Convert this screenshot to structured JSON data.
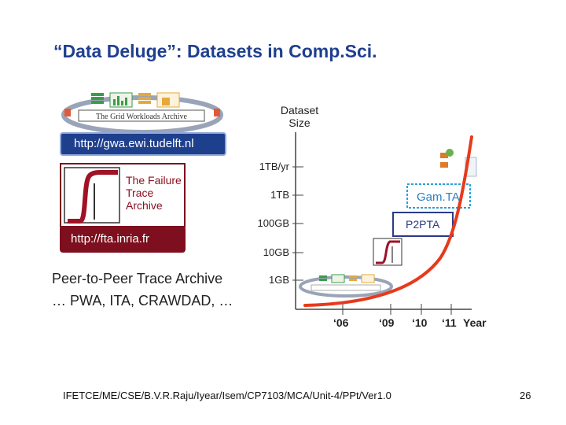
{
  "slide": {
    "title": "“Data Deluge”: Datasets in Comp.Sci.",
    "footer": "IFETCE/ME/CSE/B.V.R.Raju/Iyear/Isem/CP7103/MCA/Unit-4/PPt/Ver1.0",
    "page_number": "26"
  },
  "left": {
    "gwa_logo_text": "The Grid Workloads Archive",
    "gwa_url": "http://gwa.ewi.tudelft.nl",
    "fta_name_lines": [
      "The Failure",
      "Trace",
      "Archive"
    ],
    "fta_url": "http://fta.inria.fr",
    "p2p": "Peer-to-Peer Trace Archive",
    "others": "… PWA, ITA, CRAWDAD, …"
  },
  "chart_data": {
    "type": "line",
    "y_title_lines": [
      "Dataset",
      "Size"
    ],
    "y_ticks": [
      "1TB/yr",
      "1TB",
      "100GB",
      "10GB",
      "1GB"
    ],
    "x_ticks": [
      "‘06",
      "‘09",
      "‘10",
      "‘11"
    ],
    "x_title": "Year",
    "annotations": [
      "Gam.TA",
      "P2PTA"
    ],
    "curve_color": "#e63a1c"
  }
}
